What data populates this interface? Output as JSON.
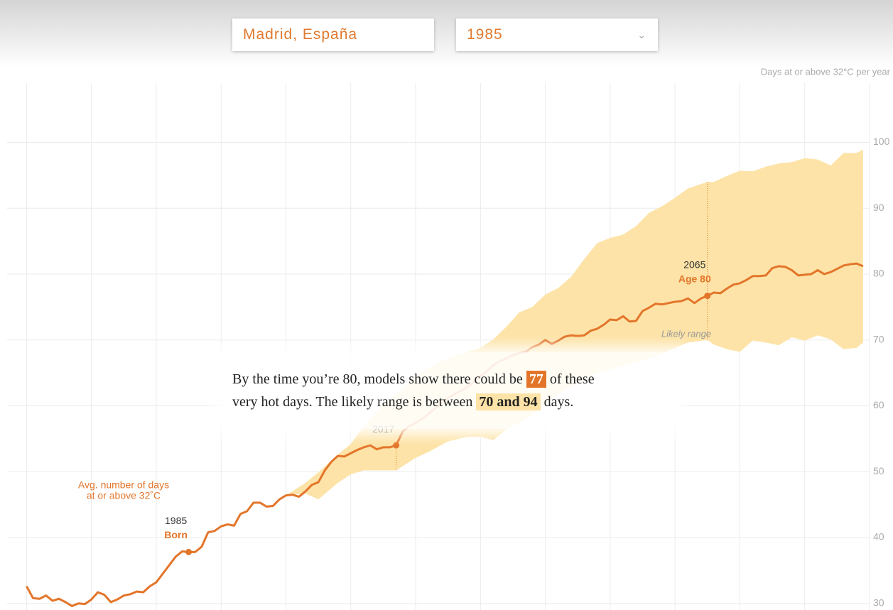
{
  "controls": {
    "location": "Madrid, España",
    "year": "1985"
  },
  "chart_data": {
    "type": "line",
    "y_axis_label": "Days at or above 32°C per year",
    "series_label": [
      "Avg. number of days",
      "at or above 32˚C"
    ],
    "x": [
      1960,
      1961,
      1962,
      1963,
      1964,
      1965,
      1966,
      1967,
      1968,
      1969,
      1970,
      1971,
      1972,
      1973,
      1974,
      1975,
      1976,
      1977,
      1978,
      1979,
      1980,
      1981,
      1982,
      1983,
      1984,
      1985,
      1986,
      1987,
      1988,
      1989,
      1990,
      1991,
      1992,
      1993,
      1994,
      1995,
      1996,
      1997,
      1998,
      1999,
      2000,
      2001,
      2002,
      2003,
      2004,
      2005,
      2006,
      2007,
      2008,
      2009,
      2010,
      2011,
      2012,
      2013,
      2014,
      2015,
      2016,
      2017,
      2018,
      2019,
      2020,
      2021,
      2022,
      2023,
      2024,
      2025,
      2026,
      2027,
      2028,
      2029,
      2030,
      2031,
      2032,
      2033,
      2034,
      2035,
      2036,
      2037,
      2038,
      2039,
      2040,
      2041,
      2042,
      2043,
      2044,
      2045,
      2046,
      2047,
      2048,
      2049,
      2050,
      2051,
      2052,
      2053,
      2054,
      2055,
      2056,
      2057,
      2058,
      2059,
      2060,
      2061,
      2062,
      2063,
      2064,
      2065,
      2066,
      2067,
      2068,
      2069,
      2070,
      2071,
      2072,
      2073,
      2074,
      2075,
      2076,
      2077,
      2078,
      2079,
      2080,
      2081,
      2082,
      2083,
      2084,
      2085,
      2086,
      2087,
      2088,
      2089
    ],
    "series": [
      {
        "color": "#e3752a",
        "values": [
          32.6,
          30.8,
          30.7,
          31.2,
          30.4,
          30.7,
          30.2,
          29.6,
          30.0,
          29.9,
          30.6,
          31.7,
          31.3,
          30.2,
          30.6,
          31.2,
          31.4,
          31.8,
          31.7,
          32.6,
          33.2,
          34.5,
          35.8,
          37.1,
          37.9,
          37.8,
          37.8,
          38.6,
          40.8,
          41.0,
          41.7,
          42.0,
          41.8,
          43.6,
          44.0,
          45.3,
          45.3,
          44.7,
          44.8,
          45.8,
          46.4,
          46.5,
          46.2,
          47.0,
          48.0,
          48.4,
          50.2,
          51.5,
          52.4,
          52.3,
          52.8,
          53.3,
          53.7,
          54.0,
          53.4,
          53.7,
          53.7,
          54.0,
          56.1,
          56.9,
          57.4,
          58.0,
          58.8,
          59.6,
          60.4,
          61.2,
          61.8,
          62.3,
          62.9,
          63.7,
          64.5,
          65.3,
          66.2,
          66.8,
          67.2,
          67.7,
          68.0,
          68.2,
          68.9,
          69.3,
          70.0,
          69.4,
          69.9,
          70.5,
          70.7,
          70.6,
          70.7,
          71.4,
          71.7,
          72.3,
          73.1,
          73.0,
          73.6,
          72.8,
          72.9,
          74.4,
          74.9,
          75.5,
          75.4,
          75.6,
          75.8,
          75.9,
          76.3,
          75.6,
          76.3,
          76.7,
          77.2,
          77.1,
          77.8,
          78.4,
          78.6,
          79.1,
          79.7,
          79.7,
          79.8,
          80.9,
          81.2,
          81.1,
          80.6,
          79.8,
          79.9,
          80.0,
          80.6,
          80.0,
          80.3,
          80.8,
          81.3,
          81.5,
          81.6,
          81.2
        ]
      }
    ],
    "band": {
      "name": "Likely range",
      "color": "#fde3a7",
      "x": [
        2000,
        2003,
        2005,
        2008,
        2010,
        2012,
        2015,
        2017,
        2020,
        2022,
        2025,
        2028,
        2030,
        2032,
        2034,
        2036,
        2038,
        2040,
        2042,
        2044,
        2046,
        2048,
        2050,
        2052,
        2054,
        2056,
        2058,
        2060,
        2062,
        2065,
        2066,
        2068,
        2070,
        2072,
        2074,
        2076,
        2078,
        2080,
        2082,
        2084,
        2086,
        2088,
        2089
      ],
      "high": [
        46.4,
        48.3,
        49.9,
        52.6,
        54.2,
        56.9,
        60.2,
        61.8,
        64.5,
        65.8,
        67.2,
        68.2,
        68.8,
        70.1,
        72.0,
        74.2,
        75.0,
        76.9,
        77.9,
        79.6,
        82.3,
        84.7,
        85.5,
        86.0,
        87.3,
        89.3,
        90.3,
        91.6,
        93.0,
        94,
        94.0,
        94.9,
        95.7,
        95.6,
        96.3,
        96.8,
        97.0,
        97.6,
        97.4,
        96.5,
        98.4,
        98.4,
        98.9
      ],
      "low": [
        46.4,
        46.7,
        45.8,
        48.3,
        49.6,
        50.2,
        50.2,
        50.2,
        52.1,
        53.0,
        54.6,
        55.3,
        55.3,
        54.8,
        56.4,
        57.5,
        58.5,
        60.2,
        61.8,
        62.9,
        63.9,
        65.0,
        65.5,
        66.1,
        66.6,
        67.2,
        67.9,
        68.8,
        69.6,
        70,
        69.3,
        68.6,
        68.2,
        69.9,
        69.6,
        69.2,
        70.4,
        69.9,
        70.7,
        70.1,
        68.6,
        68.8,
        69.6
      ]
    },
    "annotations": [
      {
        "x": 1985,
        "y": 37.8,
        "label": "1985",
        "sublabel": "Born"
      },
      {
        "x": 2017,
        "y": 54.0,
        "label": "2017"
      },
      {
        "x": 2065,
        "y": 76.7,
        "label": "2065",
        "sublabel": "Age 80"
      }
    ],
    "xlim": [
      1957,
      2090
    ],
    "xticks": [
      1960,
      1970,
      1980,
      1990,
      2000,
      2010,
      2020,
      2030,
      2040,
      2050,
      2060,
      2070,
      2080,
      2090
    ],
    "ylim": [
      29,
      109
    ],
    "yticks": [
      30,
      40,
      50,
      60,
      70,
      80,
      90,
      100
    ],
    "grid": true
  },
  "summary": {
    "before": "By the time you’re 80, models show there could be",
    "value": "77",
    "middle": "of these",
    "line2": "very hot days. The likely range is between",
    "range": "70 and 94",
    "after": "days."
  }
}
